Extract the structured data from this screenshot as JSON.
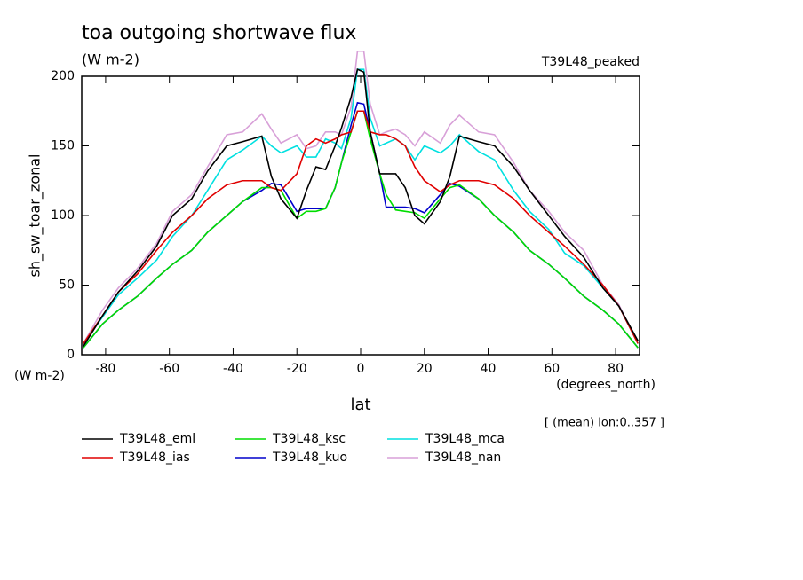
{
  "chart_data": {
    "type": "line",
    "title": "toa outgoing shortwave flux",
    "subtitle": "(W m-2)",
    "annotation": "T39L48_peaked",
    "ylabel": "sh_sw_toar_zonal",
    "y_unit": "(W m-2)",
    "xlabel": "lat",
    "x_unit": "(degrees_north)",
    "note": "[ (mean) lon:0..357 ]",
    "x": [
      -87,
      -81,
      -76,
      -70,
      -64,
      -59,
      -53,
      -48,
      -42,
      -37,
      -31,
      -28,
      -25,
      -20,
      -17,
      -14,
      -11,
      -8,
      -6,
      -3,
      -1,
      1,
      3,
      6,
      8,
      11,
      14,
      17,
      20,
      25,
      28,
      31,
      37,
      42,
      48,
      53,
      59,
      64,
      70,
      76,
      81,
      87
    ],
    "series": [
      {
        "name": "T39L48_eml",
        "color": "#000000",
        "values": [
          6,
          28,
          45,
          60,
          78,
          100,
          112,
          132,
          150,
          153,
          157,
          128,
          112,
          98,
          118,
          135,
          133,
          150,
          163,
          185,
          205,
          203,
          160,
          130,
          130,
          130,
          120,
          100,
          94,
          110,
          128,
          157,
          153,
          150,
          135,
          118,
          100,
          85,
          70,
          48,
          35,
          10
        ]
      },
      {
        "name": "T39L48_ias",
        "color": "#e00000",
        "values": [
          8,
          28,
          45,
          58,
          75,
          88,
          100,
          112,
          122,
          125,
          125,
          120,
          118,
          130,
          150,
          155,
          152,
          155,
          158,
          160,
          175,
          175,
          160,
          158,
          158,
          155,
          150,
          135,
          125,
          117,
          122,
          125,
          125,
          122,
          112,
          100,
          88,
          78,
          65,
          50,
          35,
          8
        ]
      },
      {
        "name": "T39L48_ksc",
        "color": "#00dd00",
        "values": [
          5,
          22,
          32,
          42,
          55,
          65,
          75,
          88,
          100,
          110,
          120,
          120,
          118,
          98,
          103,
          103,
          105,
          120,
          138,
          160,
          175,
          175,
          155,
          130,
          115,
          104,
          103,
          102,
          98,
          112,
          120,
          122,
          112,
          100,
          88,
          75,
          65,
          55,
          42,
          32,
          22,
          5
        ]
      },
      {
        "name": "T39L48_kuo",
        "color": "#0000cc",
        "values": [
          5,
          22,
          32,
          42,
          55,
          65,
          75,
          88,
          100,
          110,
          118,
          123,
          122,
          103,
          105,
          105,
          105,
          120,
          138,
          165,
          181,
          180,
          160,
          130,
          106,
          106,
          106,
          105,
          102,
          115,
          123,
          121,
          112,
          100,
          88,
          75,
          65,
          55,
          42,
          32,
          22,
          5
        ]
      },
      {
        "name": "T39L48_mca",
        "color": "#00e0e0",
        "values": [
          8,
          27,
          43,
          55,
          68,
          85,
          100,
          118,
          140,
          147,
          157,
          150,
          145,
          150,
          142,
          142,
          155,
          152,
          148,
          170,
          205,
          205,
          170,
          150,
          152,
          155,
          150,
          140,
          150,
          145,
          150,
          158,
          146,
          140,
          118,
          103,
          90,
          73,
          64,
          48,
          35,
          8
        ]
      },
      {
        "name": "T39L48_nan",
        "color": "#d8a0d8",
        "values": [
          8,
          32,
          48,
          62,
          80,
          103,
          115,
          135,
          158,
          160,
          173,
          162,
          152,
          158,
          148,
          150,
          160,
          160,
          158,
          178,
          218,
          218,
          180,
          158,
          160,
          162,
          158,
          150,
          160,
          152,
          165,
          172,
          160,
          158,
          138,
          118,
          103,
          88,
          75,
          50,
          36,
          8
        ]
      }
    ],
    "xlim": [
      -87.5,
      87.5
    ],
    "xticks": [
      -80,
      -60,
      -40,
      -20,
      0,
      20,
      40,
      60,
      80
    ],
    "ylim": [
      0,
      200
    ],
    "yticks": [
      0,
      50,
      100,
      150,
      200
    ]
  }
}
